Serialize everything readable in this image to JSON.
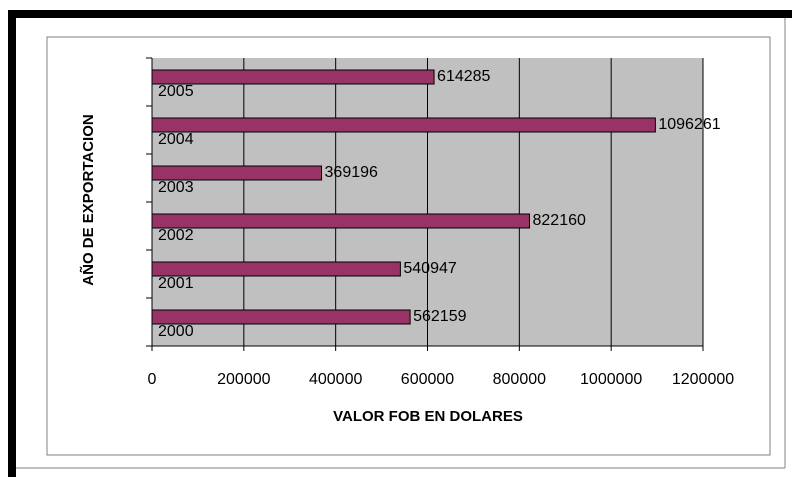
{
  "chart_data": {
    "type": "bar",
    "orientation": "horizontal",
    "x_label": "VALOR FOB EN DOLARES",
    "y_label": "AÑO DE EXPORTACION",
    "categories": [
      "2000",
      "2001",
      "2002",
      "2003",
      "2004",
      "2005"
    ],
    "values": [
      562159,
      540947,
      822160,
      369196,
      1096261,
      614285
    ],
    "color": "#993366",
    "xlim": [
      0,
      1200000
    ],
    "xticks": [
      0,
      200000,
      400000,
      600000,
      800000,
      1000000,
      1200000
    ],
    "grid": true
  }
}
